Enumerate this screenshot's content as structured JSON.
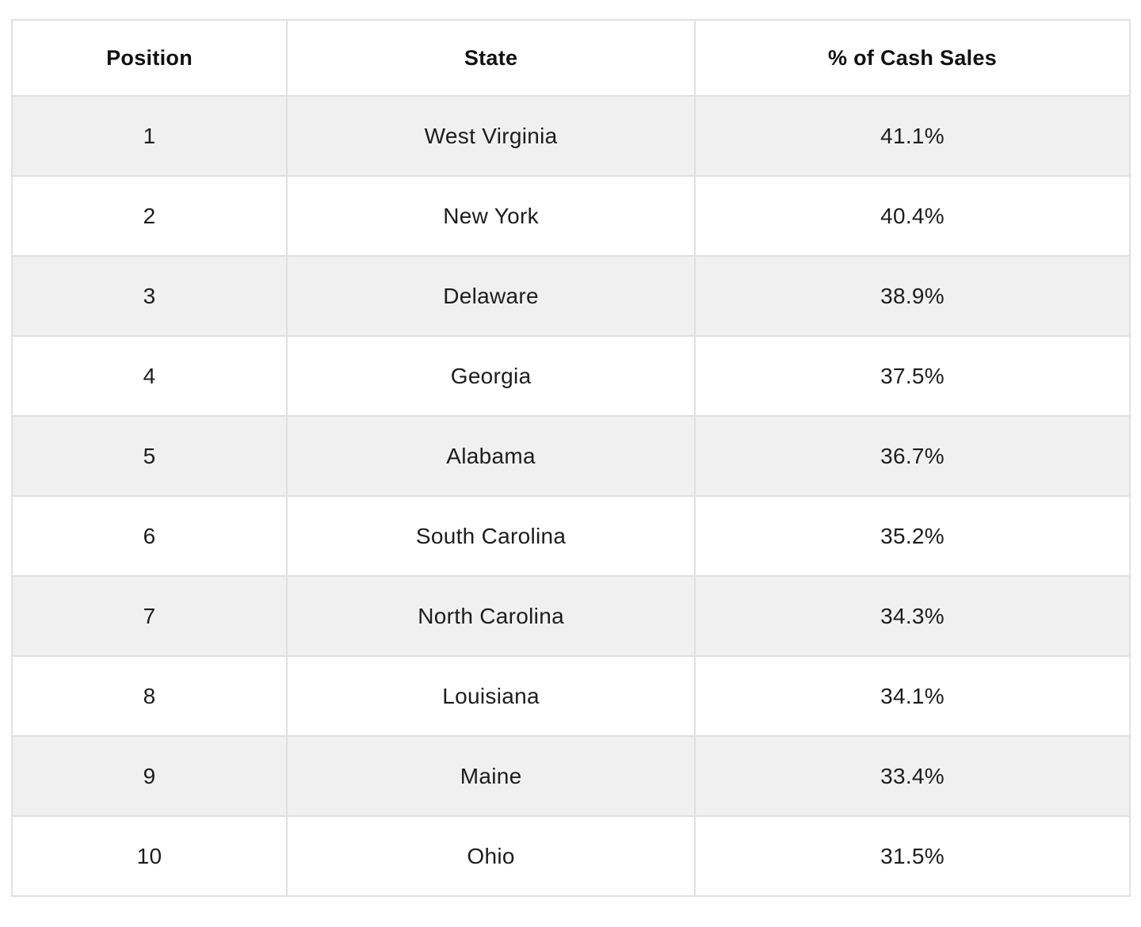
{
  "colors": {
    "page_bg": "#ffffff",
    "row_bg": "#ffffff",
    "row_alt_bg": "#f0f0f0",
    "border": "#e0e0e0",
    "header_text": "#111111",
    "cell_text": "#1d1d1d"
  },
  "table": {
    "headers": [
      "Position",
      "State",
      "% of Cash Sales"
    ],
    "rows": [
      {
        "position": "1",
        "state": "West Virginia",
        "pct": "41.1%"
      },
      {
        "position": "2",
        "state": "New York",
        "pct": "40.4%"
      },
      {
        "position": "3",
        "state": "Delaware",
        "pct": "38.9%"
      },
      {
        "position": "4",
        "state": "Georgia",
        "pct": "37.5%"
      },
      {
        "position": "5",
        "state": "Alabama",
        "pct": "36.7%"
      },
      {
        "position": "6",
        "state": "South Carolina",
        "pct": "35.2%"
      },
      {
        "position": "7",
        "state": "North Carolina",
        "pct": "34.3%"
      },
      {
        "position": "8",
        "state": "Louisiana",
        "pct": "34.1%"
      },
      {
        "position": "9",
        "state": "Maine",
        "pct": "33.4%"
      },
      {
        "position": "10",
        "state": "Ohio",
        "pct": "31.5%"
      }
    ]
  },
  "chart_data": {
    "type": "table",
    "columns": [
      "Position",
      "State",
      "% of Cash Sales"
    ],
    "rows": [
      [
        1,
        "West Virginia",
        41.1
      ],
      [
        2,
        "New York",
        40.4
      ],
      [
        3,
        "Delaware",
        38.9
      ],
      [
        4,
        "Georgia",
        37.5
      ],
      [
        5,
        "Alabama",
        36.7
      ],
      [
        6,
        "South Carolina",
        35.2
      ],
      [
        7,
        "North Carolina",
        34.3
      ],
      [
        8,
        "Louisiana",
        34.1
      ],
      [
        9,
        "Maine",
        33.4
      ],
      [
        10,
        "Ohio",
        31.5
      ]
    ]
  }
}
